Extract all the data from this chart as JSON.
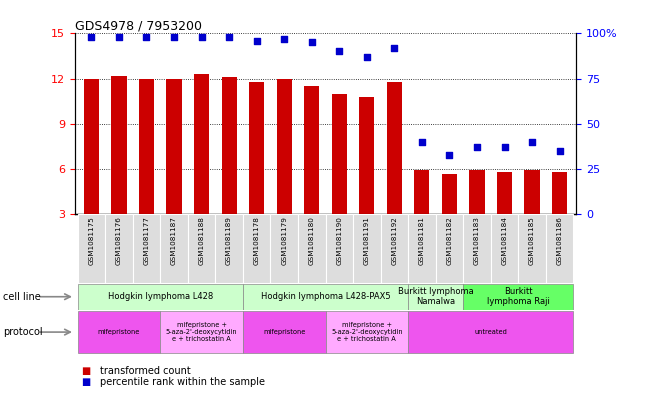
{
  "title": "GDS4978 / 7953200",
  "samples": [
    "GSM1081175",
    "GSM1081176",
    "GSM1081177",
    "GSM1081187",
    "GSM1081188",
    "GSM1081189",
    "GSM1081178",
    "GSM1081179",
    "GSM1081180",
    "GSM1081190",
    "GSM1081191",
    "GSM1081192",
    "GSM1081181",
    "GSM1081182",
    "GSM1081183",
    "GSM1081184",
    "GSM1081185",
    "GSM1081186"
  ],
  "bar_values": [
    12.0,
    12.2,
    12.0,
    12.0,
    12.3,
    12.1,
    11.8,
    12.0,
    11.5,
    11.0,
    10.8,
    11.8,
    5.9,
    5.7,
    5.9,
    5.8,
    5.9,
    5.8
  ],
  "percentile_values": [
    98,
    98,
    98,
    98,
    98,
    98,
    96,
    97,
    95,
    90,
    87,
    92,
    40,
    33,
    37,
    37,
    40,
    35
  ],
  "ylim_left": [
    3,
    15
  ],
  "ylim_right": [
    0,
    100
  ],
  "yticks_left": [
    3,
    6,
    9,
    12,
    15
  ],
  "yticks_right": [
    0,
    25,
    50,
    75,
    100
  ],
  "bar_color": "#cc0000",
  "dot_color": "#0000cc",
  "cell_line_groups": [
    {
      "label": "Hodgkin lymphoma L428",
      "start": 0,
      "end": 5,
      "color": "#ccffcc"
    },
    {
      "label": "Hodgkin lymphoma L428-PAX5",
      "start": 6,
      "end": 11,
      "color": "#ccffcc"
    },
    {
      "label": "Burkitt lymphoma\nNamalwa",
      "start": 12,
      "end": 13,
      "color": "#ccffcc"
    },
    {
      "label": "Burkitt\nlymphoma Raji",
      "start": 14,
      "end": 17,
      "color": "#66ff66"
    }
  ],
  "protocol_groups": [
    {
      "label": "mifepristone",
      "start": 0,
      "end": 2,
      "color": "#ee55ee"
    },
    {
      "label": "mifepristone +\n5-aza-2'-deoxycytidin\ne + trichostatin A",
      "start": 3,
      "end": 5,
      "color": "#ffaaff"
    },
    {
      "label": "mifepristone",
      "start": 6,
      "end": 8,
      "color": "#ee55ee"
    },
    {
      "label": "mifepristone +\n5-aza-2'-deoxycytidin\ne + trichostatin A",
      "start": 9,
      "end": 11,
      "color": "#ffaaff"
    },
    {
      "label": "untreated",
      "start": 12,
      "end": 17,
      "color": "#ee55ee"
    }
  ],
  "legend_items": [
    {
      "label": "transformed count",
      "color": "#cc0000"
    },
    {
      "label": "percentile rank within the sample",
      "color": "#0000cc"
    }
  ],
  "label_arrow_color": "#888888"
}
